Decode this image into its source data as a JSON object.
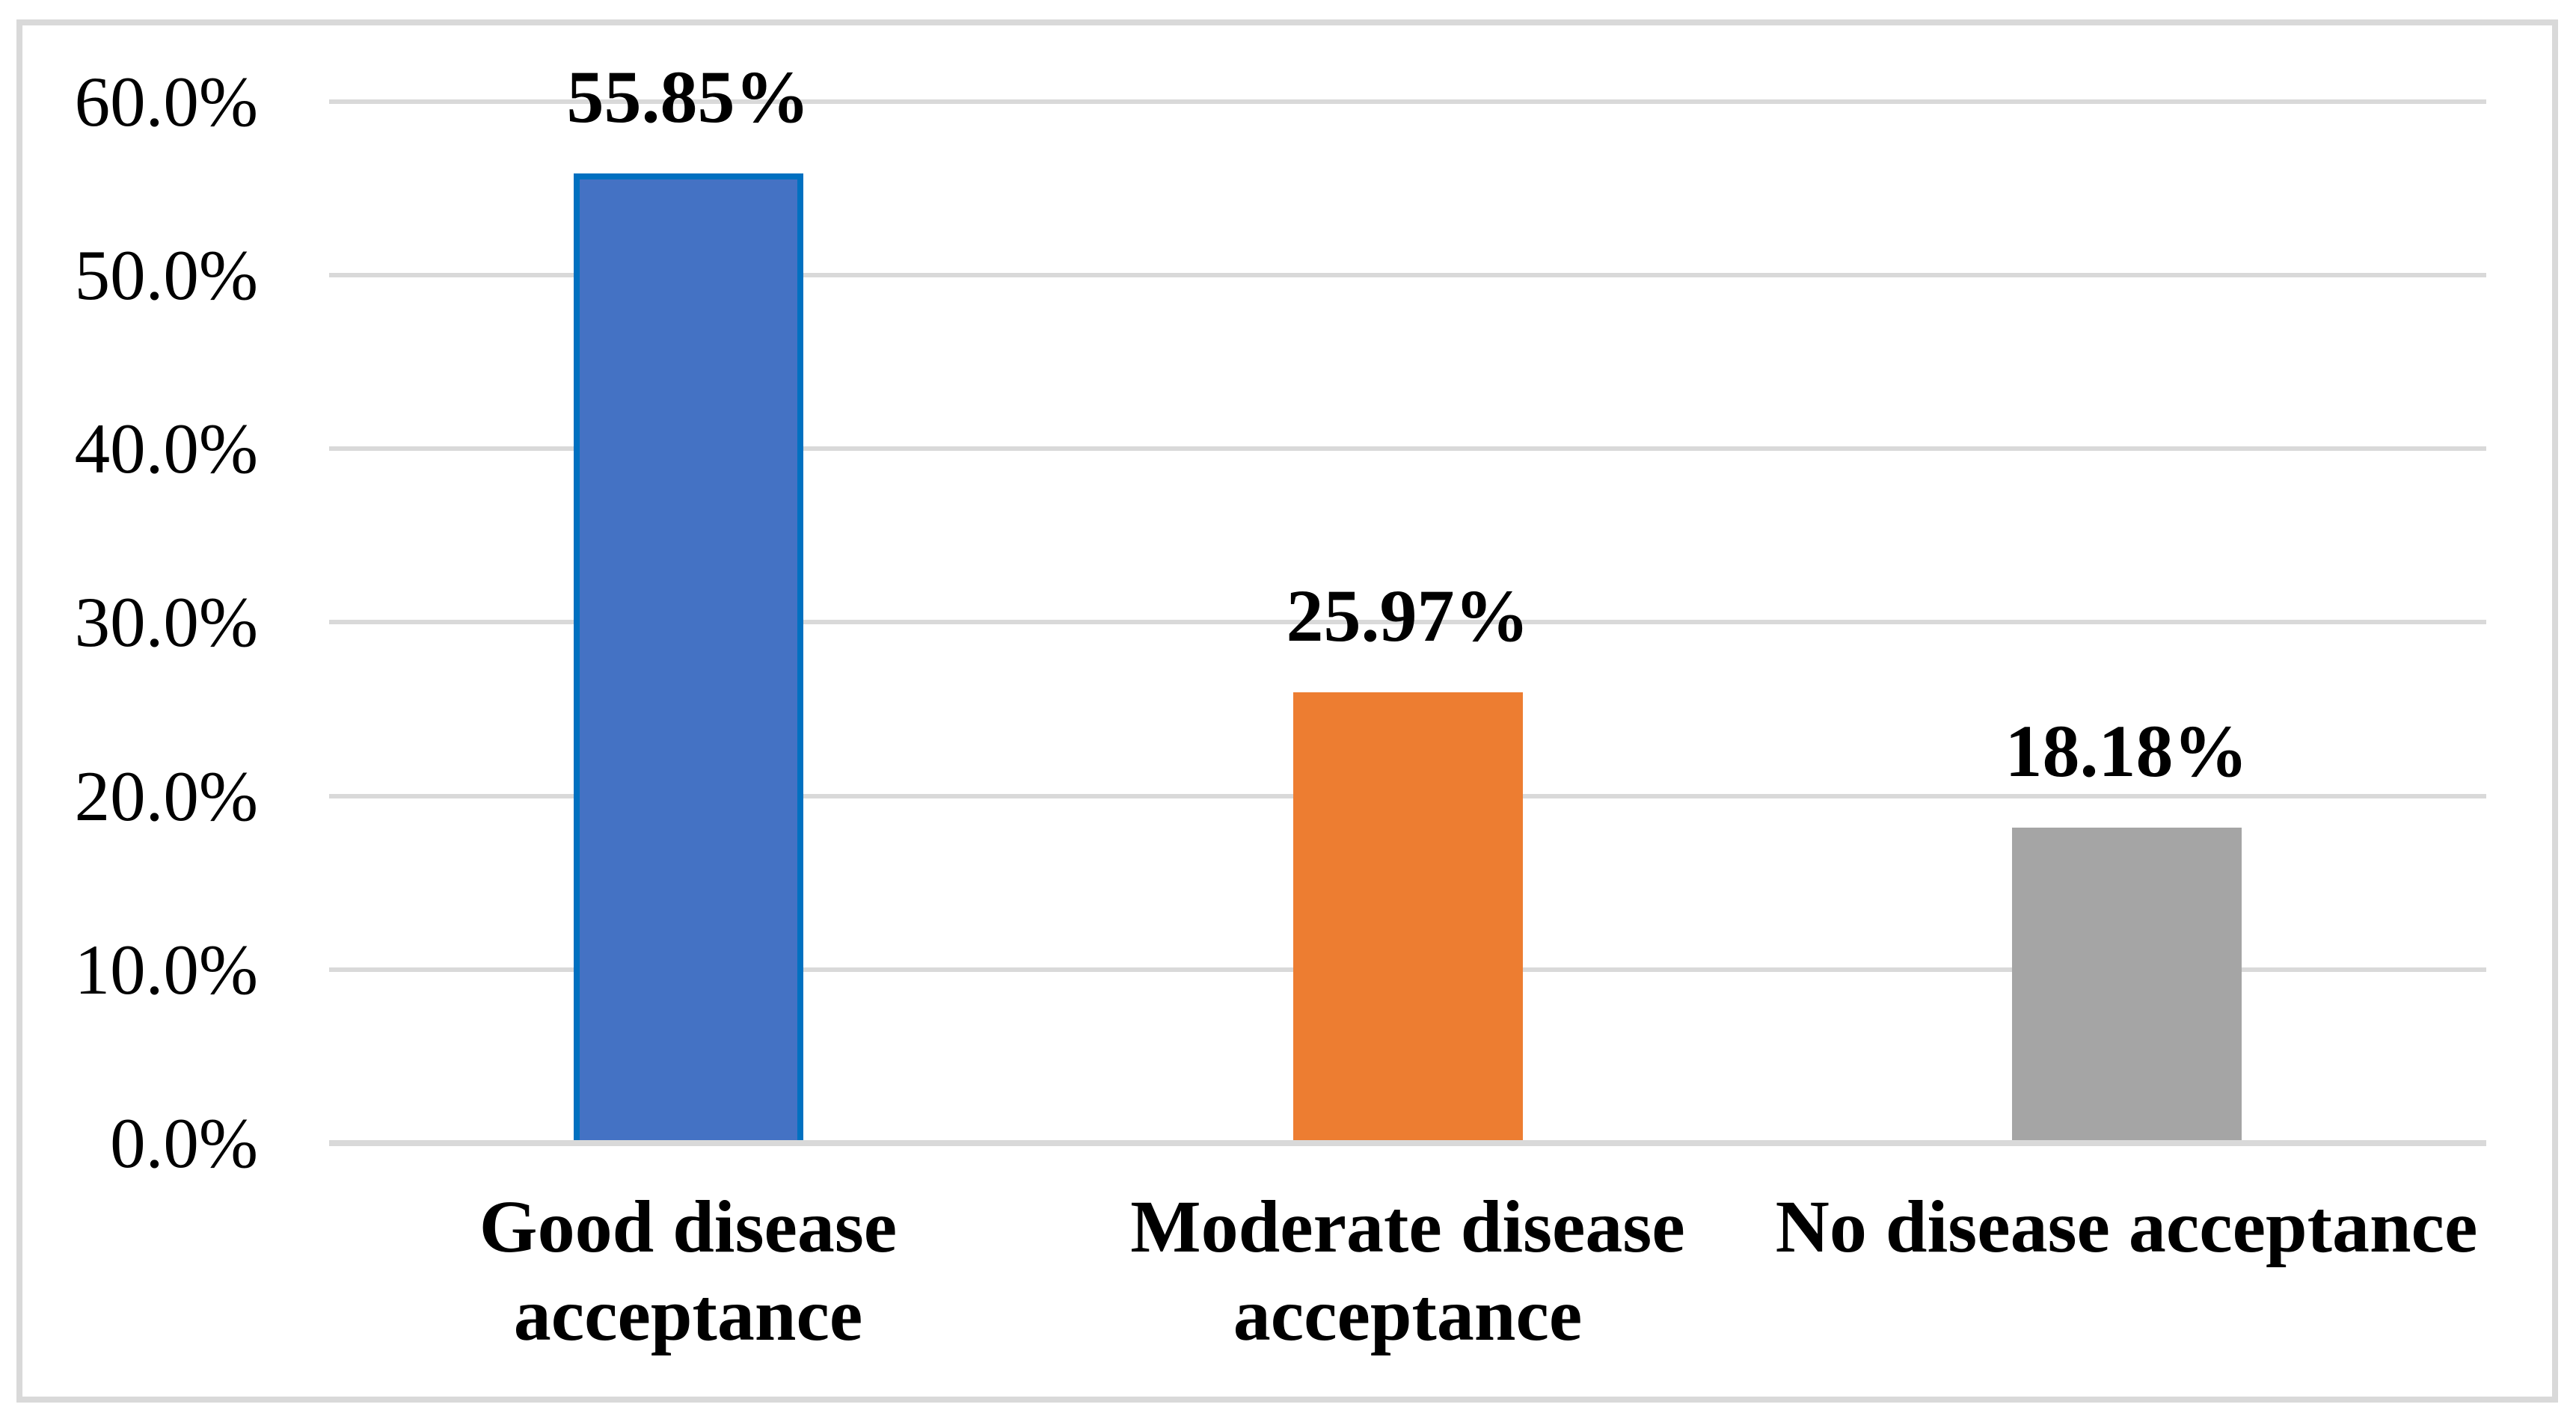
{
  "chart_data": {
    "type": "bar",
    "title": "",
    "xlabel": "",
    "ylabel": "",
    "categories": [
      "Good disease acceptance",
      "Moderate disease acceptance",
      "No disease acceptance"
    ],
    "category_label_lines": [
      [
        "Good disease",
        "acceptance"
      ],
      [
        "Moderate disease",
        "acceptance"
      ],
      [
        "No disease acceptance"
      ]
    ],
    "values": [
      55.85,
      25.97,
      18.18
    ],
    "data_labels": [
      "55.85%",
      "25.97%",
      "18.18%"
    ],
    "bar_colors": [
      "#4472C4",
      "#ED7D31",
      "#A5A5A5"
    ],
    "bar_border_colors": [
      "#0070C0",
      null,
      null
    ],
    "ylim": [
      0,
      60
    ],
    "ytick_step": 10,
    "ytick_labels": [
      "0.0%",
      "10.0%",
      "20.0%",
      "30.0%",
      "40.0%",
      "50.0%",
      "60.0%"
    ],
    "grid": true,
    "gridline_color": "#D9D9D9",
    "axis_line_color": "#D9D9D9",
    "frame_border_color": "#D9D9D9",
    "background_color": "#FFFFFF",
    "legend": "none"
  }
}
